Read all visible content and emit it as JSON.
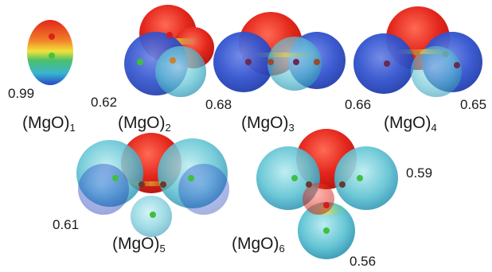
{
  "colors": {
    "negative": "#e3261b",
    "positive": "#2746c8",
    "mid_green": "#4cc06a",
    "mid_yellow": "#f2e23a",
    "atom_o": "#d71b1b",
    "atom_mg": "#3fbf3f"
  },
  "clusters": [
    {
      "label_base": "(MgO)",
      "label_sub": "1",
      "values": [
        "0.99"
      ]
    },
    {
      "label_base": "(MgO)",
      "label_sub": "2",
      "values": [
        "0.62"
      ]
    },
    {
      "label_base": "(MgO)",
      "label_sub": "3",
      "values": [
        "0.68"
      ]
    },
    {
      "label_base": "(MgO)",
      "label_sub": "4",
      "values": [
        "0.66",
        "0.65"
      ]
    },
    {
      "label_base": "(MgO)",
      "label_sub": "5",
      "values": [
        "0.61"
      ]
    },
    {
      "label_base": "(MgO)",
      "label_sub": "6",
      "values": [
        "0.59",
        "0.56"
      ]
    }
  ]
}
